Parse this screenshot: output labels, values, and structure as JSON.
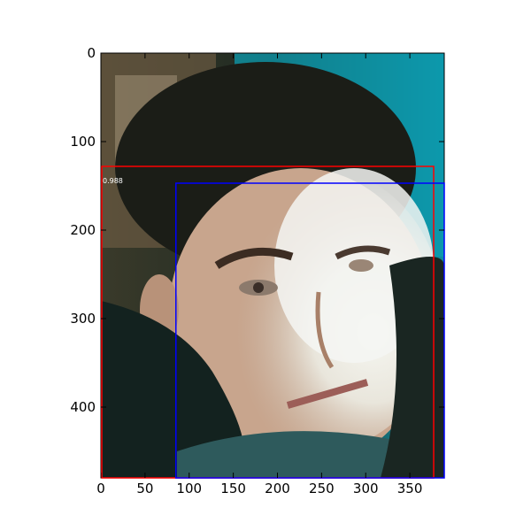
{
  "chart_data": {
    "type": "image-annotation",
    "image_extent": {
      "x": [
        0,
        389
      ],
      "y": [
        0,
        480
      ]
    },
    "x_ticks": [
      0,
      50,
      100,
      150,
      200,
      250,
      300,
      350
    ],
    "y_ticks": [
      0,
      100,
      200,
      300,
      400
    ],
    "boxes": [
      {
        "name": "detection",
        "color": "#ff0000",
        "x0": 1,
        "y0": 128,
        "x1": 377,
        "y1": 480,
        "score": "0.988"
      },
      {
        "name": "ground-truth",
        "color": "#0000ff",
        "x0": 85,
        "y0": 147,
        "x1": 389,
        "y1": 480
      }
    ]
  }
}
